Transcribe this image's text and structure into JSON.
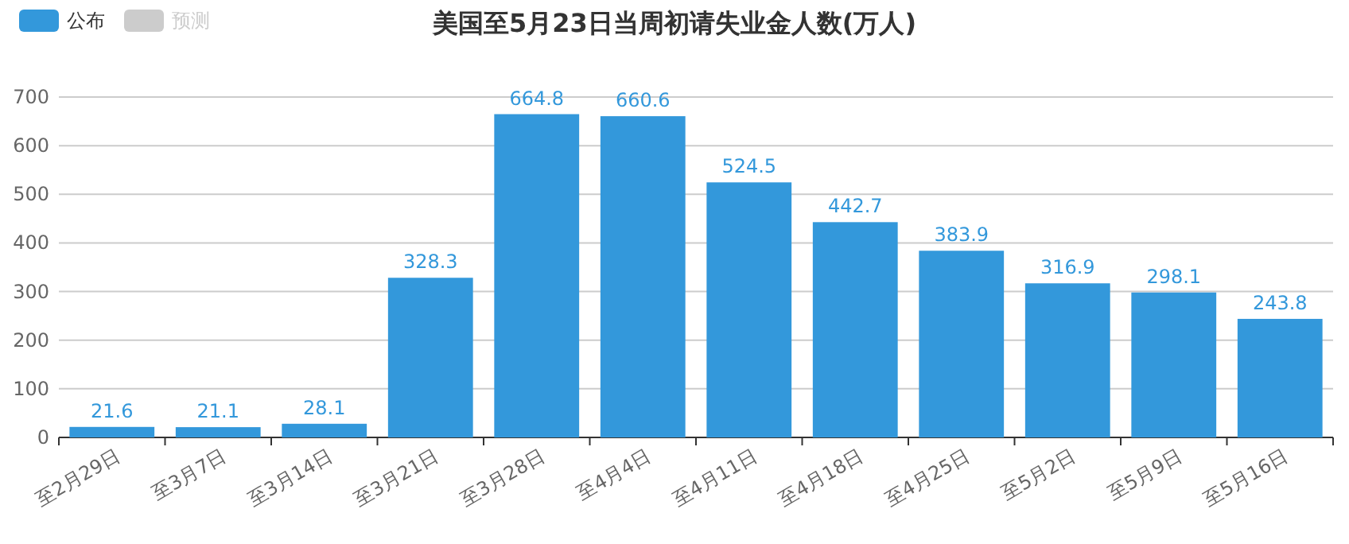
{
  "chart_data": {
    "type": "bar",
    "title": "美国至5月23日当周初请失业金人数(万人)",
    "categories": [
      "至2月29日",
      "至3月7日",
      "至3月14日",
      "至3月21日",
      "至3月28日",
      "至4月4日",
      "至4月11日",
      "至4月18日",
      "至4月25日",
      "至5月2日",
      "至5月9日",
      "至5月16日"
    ],
    "series": [
      {
        "name": "公布",
        "color": "#3398db",
        "values": [
          21.6,
          21.1,
          28.1,
          328.3,
          664.8,
          660.6,
          524.5,
          442.7,
          383.9,
          316.9,
          298.1,
          243.8
        ]
      },
      {
        "name": "预测",
        "color": "#cccccc",
        "values": [
          null,
          null,
          null,
          null,
          null,
          null,
          null,
          null,
          null,
          null,
          null,
          null
        ]
      }
    ],
    "ylim": [
      0,
      700
    ],
    "yticks": [
      0,
      100,
      200,
      300,
      400,
      500,
      600,
      700
    ],
    "grid": "y",
    "legend": "top left",
    "data_labels": true
  }
}
